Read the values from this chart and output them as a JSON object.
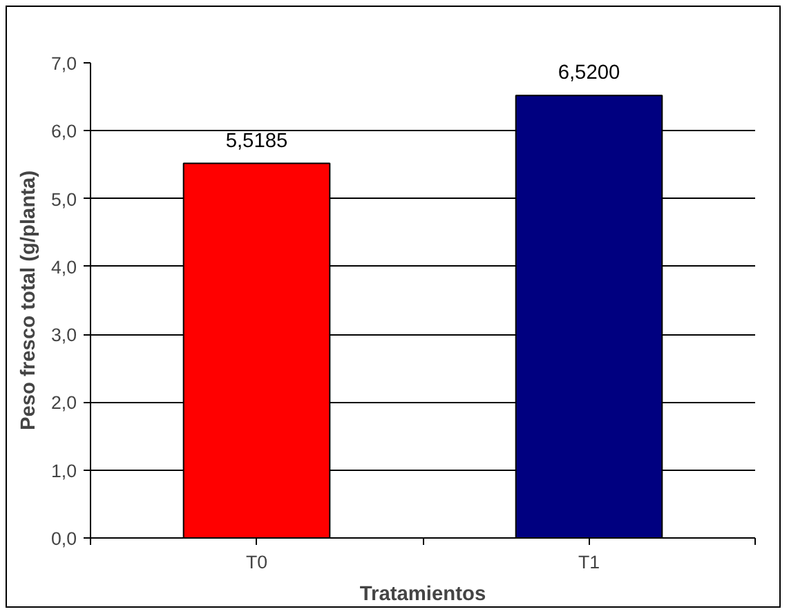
{
  "chart_data": {
    "type": "bar",
    "xlabel": "Tratamientos",
    "ylabel": "Peso fresco total (g/planta)",
    "categories": [
      "T0",
      "T1"
    ],
    "values": [
      5.5185,
      6.52
    ],
    "colors": [
      "#ff0000",
      "#000080"
    ],
    "value_labels": [
      "5,5185",
      "6,5200"
    ],
    "ylim": [
      0,
      7
    ],
    "yticks": [
      {
        "value": 0,
        "label": "0,0"
      },
      {
        "value": 1,
        "label": "1,0"
      },
      {
        "value": 2,
        "label": "2,0"
      },
      {
        "value": 3,
        "label": "3,0"
      },
      {
        "value": 4,
        "label": "4,0"
      },
      {
        "value": 5,
        "label": "5,0"
      },
      {
        "value": 6,
        "label": "6,0"
      },
      {
        "value": 7,
        "label": "7,0"
      }
    ],
    "grid": "y"
  }
}
